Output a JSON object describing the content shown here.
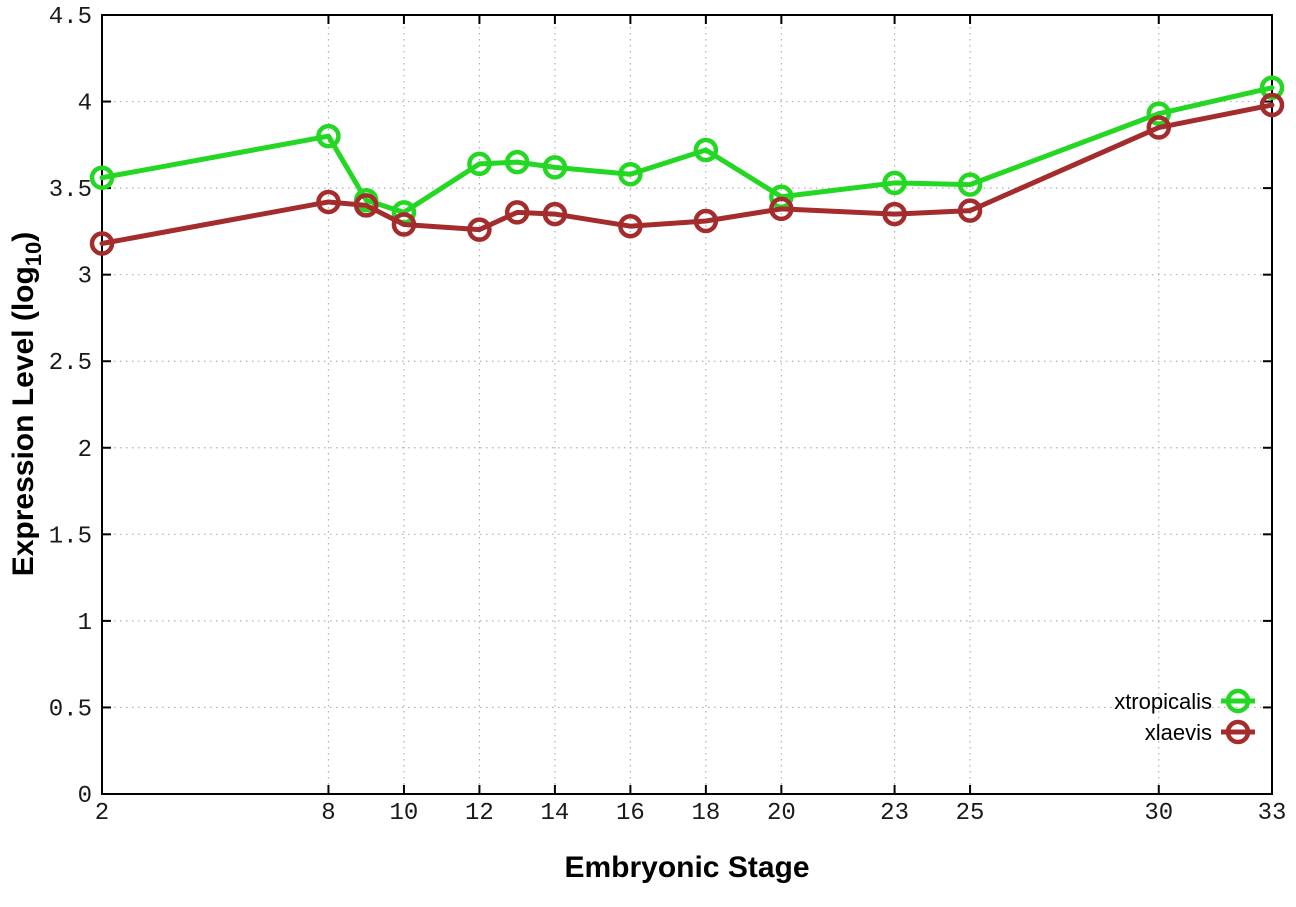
{
  "page": {
    "background": "#ffffff"
  },
  "chart_data": {
    "type": "line",
    "title": "",
    "xlabel": "Embryonic Stage",
    "ylabel": "Expression Level (log10)",
    "ylabel_rich": {
      "pre": "Expression Level (log",
      "sub": "10",
      "post": ")"
    },
    "xlim": [
      2,
      33
    ],
    "ylim": [
      0,
      4.5
    ],
    "xticks": [
      2,
      8,
      10,
      12,
      14,
      16,
      18,
      20,
      23,
      25,
      30,
      33
    ],
    "yticks": [
      0,
      0.5,
      1,
      1.5,
      2,
      2.5,
      3,
      3.5,
      4,
      4.5
    ],
    "ytick_labels": [
      "0",
      "0.5",
      "1",
      "1.5",
      "2",
      "2.5",
      "3",
      "3.5",
      "4",
      "4.5"
    ],
    "grid": "dotted",
    "legend_position": "inside-bottom-right",
    "colors": {
      "axis": "#000000",
      "grid": "#b0b0b0",
      "tick_label": "#1a1a1a",
      "xtropicalis": "#23d723",
      "xlaevis": "#a42c2c"
    },
    "marker": "open-circle",
    "x": [
      2,
      8,
      9,
      10,
      12,
      13,
      14,
      16,
      18,
      20,
      23,
      25,
      30,
      33
    ],
    "series": [
      {
        "name": "xtropicalis",
        "color": "#23d723",
        "values": [
          3.56,
          3.8,
          3.43,
          3.36,
          3.64,
          3.65,
          3.62,
          3.58,
          3.72,
          3.45,
          3.53,
          3.52,
          3.93,
          4.08
        ]
      },
      {
        "name": "xlaevis",
        "color": "#a42c2c",
        "values": [
          3.18,
          3.42,
          3.4,
          3.29,
          3.26,
          3.36,
          3.35,
          3.28,
          3.31,
          3.38,
          3.35,
          3.37,
          3.85,
          3.98
        ]
      }
    ]
  }
}
